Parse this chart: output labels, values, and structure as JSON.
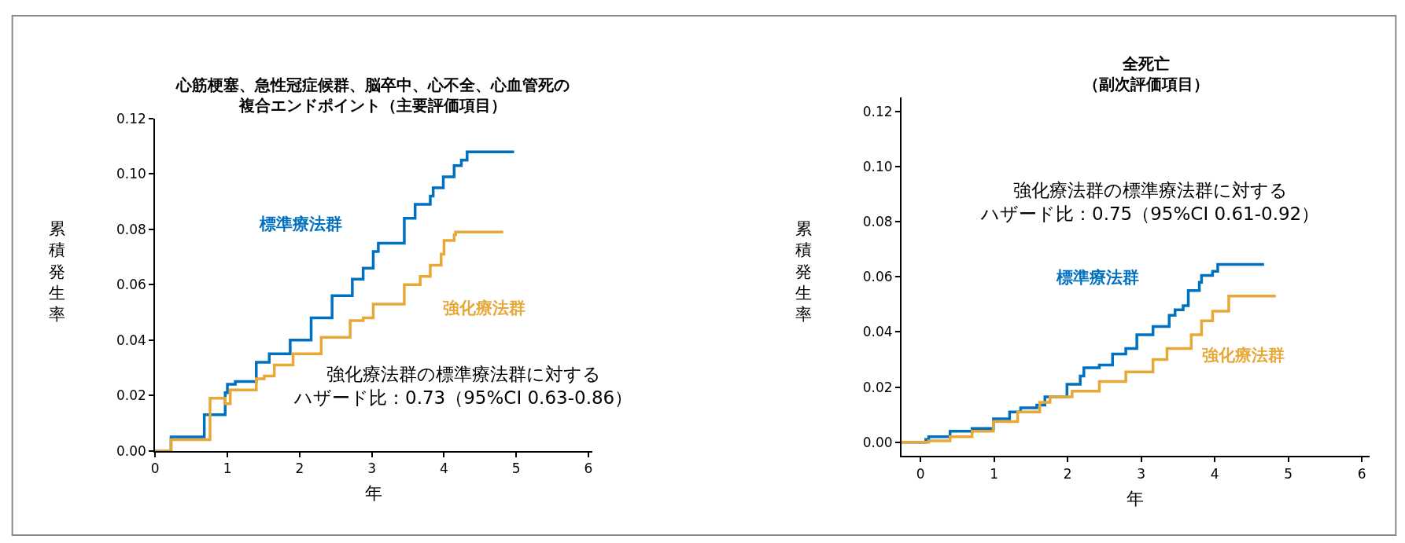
{
  "chart_data": [
    {
      "type": "step",
      "title": "心筋梗塞、急性冠症候群、脳卒中、心不全、心血管死の複合エンドポイント（主要評価項目）",
      "xlabel": "年",
      "ylabel": "累積発生率",
      "xlim": [
        0,
        6.05
      ],
      "ylim": [
        0,
        0.12
      ],
      "xticks": [
        0,
        1,
        2,
        3,
        4,
        5,
        6
      ],
      "yticks": [
        {
          "value": 0,
          "label": "0.00"
        },
        {
          "value": 0.02,
          "label": "0.02"
        },
        {
          "value": 0.04,
          "label": "0.04"
        },
        {
          "value": 0.06,
          "label": "0.06"
        },
        {
          "value": 0.08,
          "label": "0.08"
        },
        {
          "value": 0.1,
          "label": "0.10"
        },
        {
          "value": 0.12,
          "label": "0.12"
        }
      ],
      "line_style": "solid",
      "marker": "none",
      "annotations": [
        "強化療法群の標準療法群に対するハザード比：0.73（95%CI 0.63-0.86）"
      ],
      "series": [
        {
          "name": "標準療法群",
          "color": "#0070c0",
          "x": [
            0,
            0.22,
            0.68,
            0.97,
            1.0,
            1.11,
            1.4,
            1.58,
            1.87,
            2.16,
            2.45,
            2.73,
            2.88,
            3.02,
            3.09,
            3.45,
            3.6,
            3.81,
            3.85,
            3.99,
            4.14,
            4.24,
            4.32,
            4.97
          ],
          "values": [
            0,
            0.005,
            0.013,
            0.021,
            0.024,
            0.025,
            0.032,
            0.035,
            0.04,
            0.048,
            0.056,
            0.062,
            0.066,
            0.072,
            0.075,
            0.084,
            0.089,
            0.092,
            0.095,
            0.099,
            0.103,
            0.105,
            0.108,
            0.108
          ]
        },
        {
          "name": "強化療法群",
          "color": "#e8a838",
          "x": [
            0,
            0.22,
            0.76,
            0.97,
            1.04,
            1.4,
            1.51,
            1.65,
            1.91,
            2.3,
            2.7,
            2.88,
            3.02,
            3.45,
            3.67,
            3.81,
            3.96,
            4.0,
            4.14,
            4.16,
            4.82
          ],
          "values": [
            0,
            0.004,
            0.019,
            0.017,
            0.022,
            0.026,
            0.027,
            0.031,
            0.035,
            0.041,
            0.047,
            0.048,
            0.053,
            0.06,
            0.063,
            0.067,
            0.071,
            0.076,
            0.078,
            0.079,
            0.079
          ]
        }
      ]
    },
    {
      "type": "step",
      "title": "全死亡（副次評価項目）",
      "xlabel": "年",
      "ylabel": "累積発生率",
      "xlim": [
        -0.26,
        6.1
      ],
      "ylim": [
        -0.005,
        0.125
      ],
      "xticks": [
        0,
        1,
        2,
        3,
        4,
        5,
        6
      ],
      "yticks": [
        {
          "value": 0,
          "label": "0.00"
        },
        {
          "value": 0.02,
          "label": "0.02"
        },
        {
          "value": 0.04,
          "label": "0.04"
        },
        {
          "value": 0.06,
          "label": "0.06"
        },
        {
          "value": 0.08,
          "label": "0.08"
        },
        {
          "value": 0.1,
          "label": "0.10"
        },
        {
          "value": 0.12,
          "label": "0.12"
        }
      ],
      "line_style": "solid",
      "marker": "none",
      "annotations": [
        "強化療法群の標準療法群に対するハザード比：0.75（95%CI 0.61-0.92）"
      ],
      "series": [
        {
          "name": "標準療法群",
          "color": "#0070c0",
          "x": [
            -0.26,
            0,
            0.07,
            0.11,
            0.4,
            0.7,
            0.99,
            1.21,
            1.36,
            1.58,
            1.69,
            1.99,
            2.17,
            2.22,
            2.43,
            2.61,
            2.79,
            2.94,
            3.16,
            3.38,
            3.46,
            3.57,
            3.64,
            3.79,
            3.82,
            3.97,
            4.04,
            4.67
          ],
          "values": [
            0,
            0,
            0.001,
            0.002,
            0.004,
            0.005,
            0.0085,
            0.011,
            0.0125,
            0.0135,
            0.0165,
            0.021,
            0.024,
            0.027,
            0.028,
            0.032,
            0.034,
            0.039,
            0.042,
            0.046,
            0.048,
            0.0495,
            0.055,
            0.058,
            0.0605,
            0.062,
            0.0645,
            0.0645
          ]
        },
        {
          "name": "強化療法群",
          "color": "#e8a838",
          "x": [
            -0.26,
            0,
            0.11,
            0.4,
            0.7,
            0.99,
            1.32,
            1.62,
            1.76,
            2.06,
            2.43,
            2.79,
            3.16,
            3.35,
            3.68,
            3.82,
            3.97,
            4.19,
            4.83
          ],
          "values": [
            0,
            0,
            0.0005,
            0.002,
            0.004,
            0.0075,
            0.011,
            0.0145,
            0.0165,
            0.0185,
            0.022,
            0.0255,
            0.03,
            0.034,
            0.039,
            0.044,
            0.0475,
            0.053,
            0.053
          ]
        }
      ]
    }
  ]
}
